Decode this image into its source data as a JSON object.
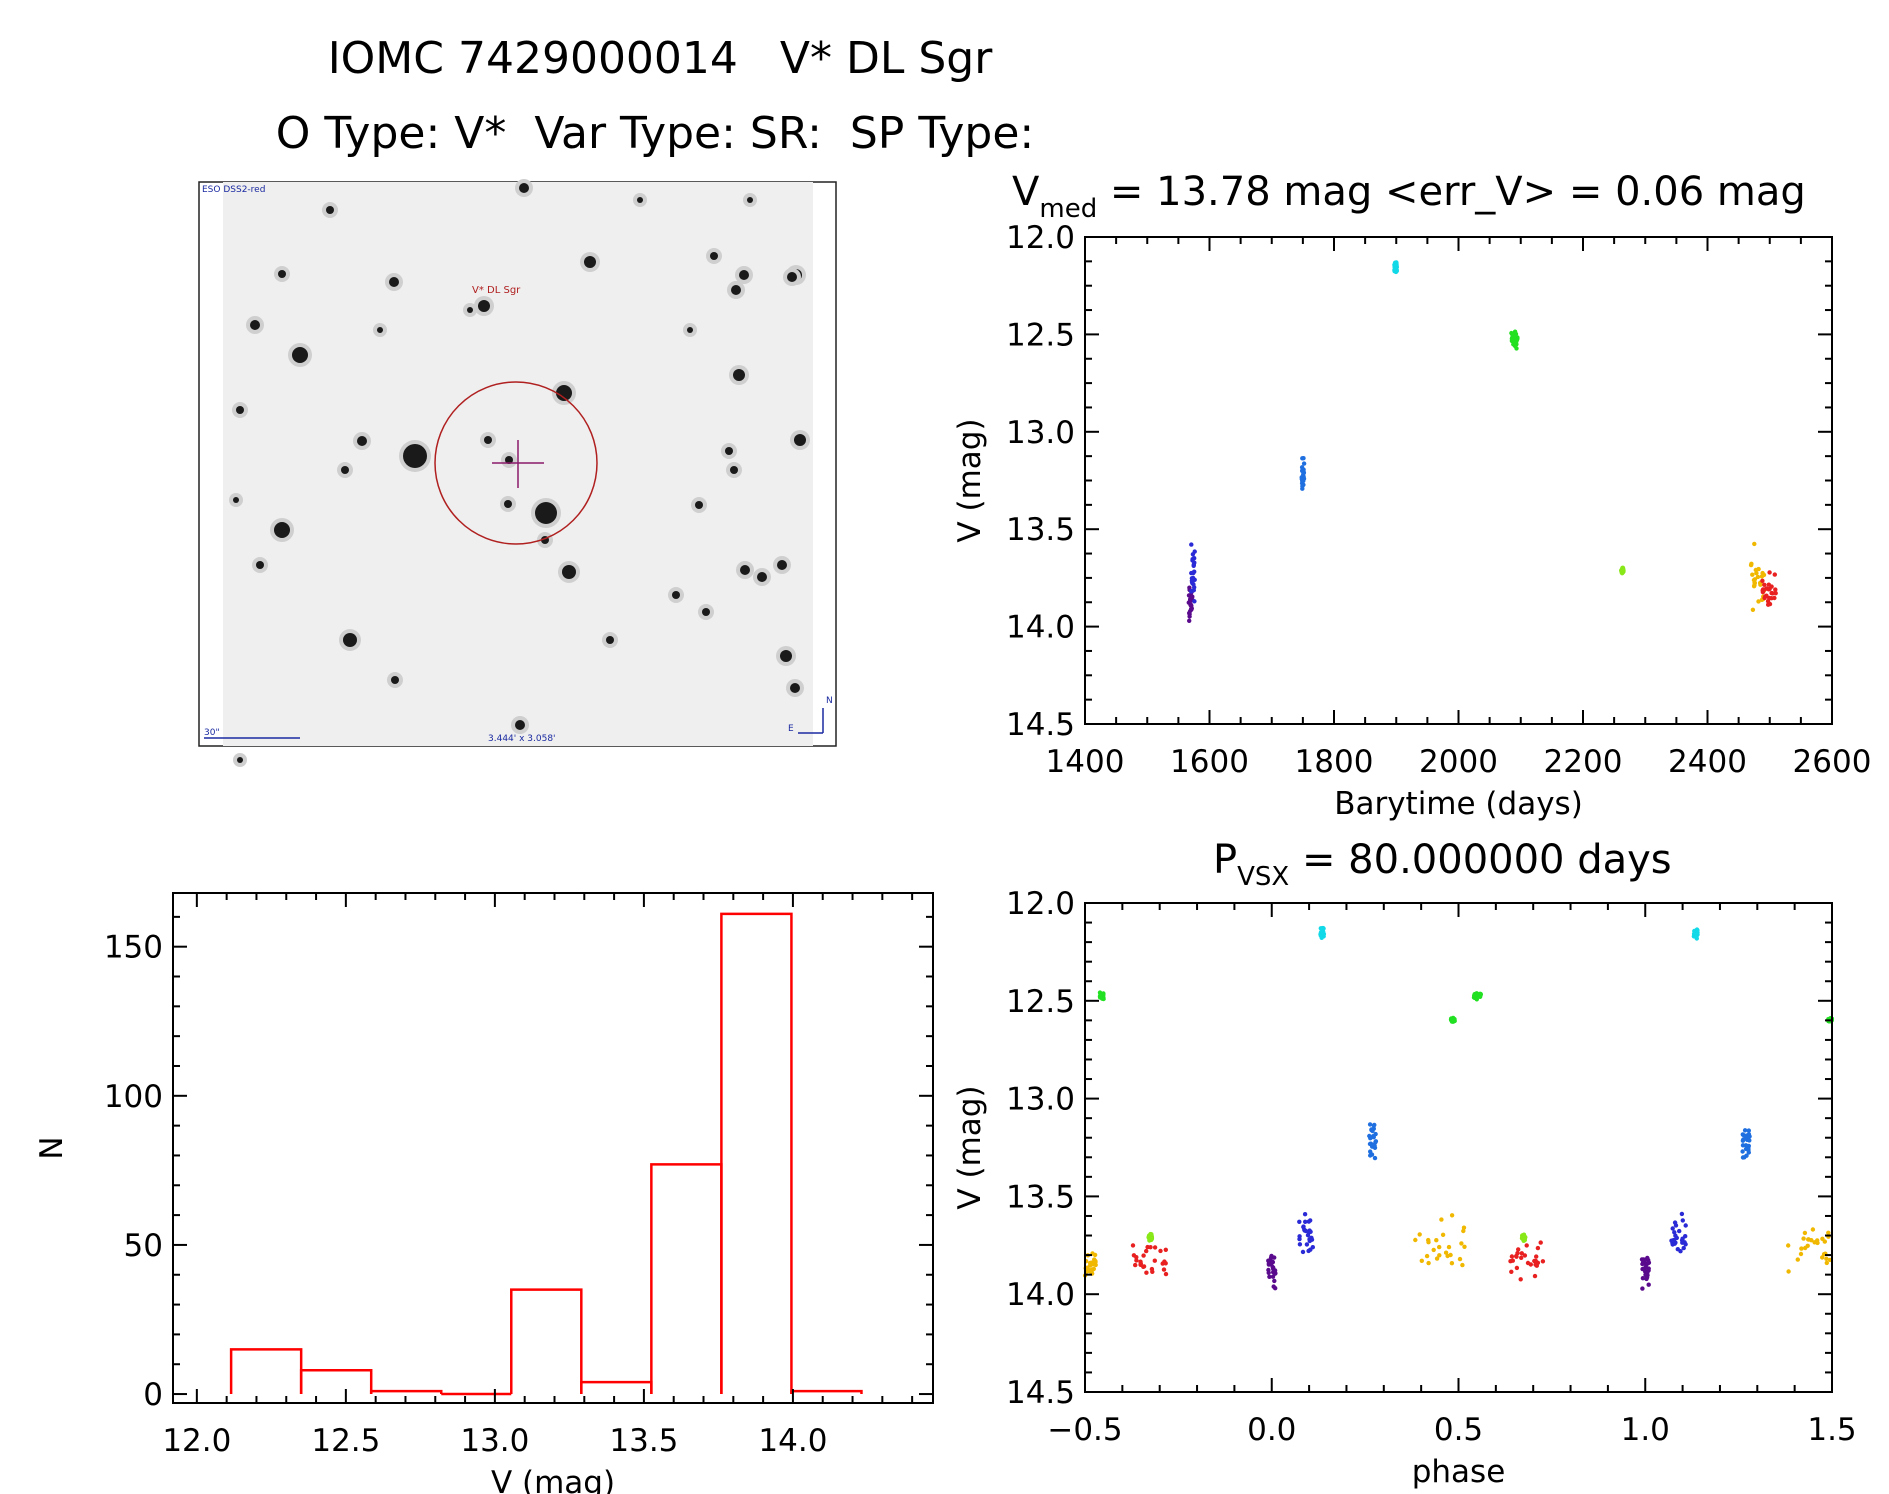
{
  "header": {
    "title": "IOMC 7429000014   V* DL Sgr",
    "subtitle": "O Type: V*  Var Type: SR:  SP Type:"
  },
  "finder": {
    "survey_label": "ESO DSS2-red",
    "target_label": "V* DL Sgr",
    "scale_label": "30\"",
    "fov_label": "3.444' x 3.058'",
    "north_label": "N",
    "east_label": "E"
  },
  "light_curve_title": {
    "main": "V",
    "sub": "med",
    "rest": " = 13.78 mag <err_V> = 0.06 mag"
  },
  "phase_title": {
    "main": "P",
    "sub": "VSX",
    "rest": " = 80.000000 days"
  },
  "chart_data": [
    {
      "id": "light-curve",
      "type": "scatter",
      "xlabel": "Barytime (days)",
      "ylabel": "V (mag)",
      "xlim": [
        1400,
        2600
      ],
      "ylim": [
        14.5,
        12.0
      ],
      "y_inverted": true,
      "xticks": [
        1400,
        1600,
        1800,
        2000,
        2200,
        2400,
        2600
      ],
      "yticks": [
        12.0,
        12.5,
        13.0,
        13.5,
        14.0,
        14.5
      ],
      "groups": [
        {
          "color": "#5a0a8c",
          "x": [
            1566,
            1573
          ],
          "y": [
            13.72,
            14.02
          ]
        },
        {
          "color": "#2a2ad6",
          "x": [
            1570,
            1578
          ],
          "y": [
            13.53,
            13.92
          ]
        },
        {
          "color": "#1f6fe0",
          "x": [
            1748,
            1752
          ],
          "y": [
            13.1,
            13.33
          ]
        },
        {
          "color": "#12d9e8",
          "x": [
            1897,
            1901
          ],
          "y": [
            12.12,
            12.19
          ]
        },
        {
          "color": "#22e022",
          "x": [
            2085,
            2095
          ],
          "y": [
            12.45,
            12.6
          ]
        },
        {
          "color": "#88e818",
          "x": [
            2261,
            2265
          ],
          "y": [
            13.69,
            13.73
          ]
        },
        {
          "color": "#f0b800",
          "x": [
            2470,
            2492
          ],
          "y": [
            13.53,
            13.99
          ]
        },
        {
          "color": "#e82020",
          "x": [
            2488,
            2510
          ],
          "y": [
            13.7,
            13.97
          ]
        }
      ]
    },
    {
      "id": "histogram",
      "type": "bar",
      "xlabel": "V (mag)",
      "ylabel": "N",
      "xlim": [
        11.92,
        14.47
      ],
      "ylim": [
        -3,
        168
      ],
      "xticks": [
        12.0,
        12.5,
        13.0,
        13.5,
        14.0
      ],
      "yticks": [
        0,
        50,
        100,
        150
      ],
      "bin_width": 0.235,
      "bin_starts": [
        12.115,
        12.35,
        12.585,
        12.82,
        13.055,
        13.29,
        13.525,
        13.76,
        13.995
      ],
      "values": [
        15,
        8,
        1,
        0,
        35,
        4,
        77,
        161,
        1
      ],
      "bar_color": "#ff0000"
    },
    {
      "id": "phase-curve",
      "type": "scatter",
      "xlabel": "phase",
      "ylabel": "V (mag)",
      "xlim": [
        -0.5,
        1.5
      ],
      "ylim": [
        14.5,
        12.0
      ],
      "y_inverted": true,
      "xticks": [
        -0.5,
        0.0,
        0.5,
        1.0,
        1.5
      ],
      "yticks": [
        12.0,
        12.5,
        13.0,
        13.5,
        14.0,
        14.5
      ],
      "groups": [
        {
          "color": "#22e022",
          "x": [
            -0.46,
            -0.45
          ],
          "y": [
            12.45,
            12.5
          ]
        },
        {
          "color": "#f0b800",
          "x": [
            -0.5,
            -0.47
          ],
          "y": [
            13.75,
            13.95
          ]
        },
        {
          "color": "#e82020",
          "x": [
            -0.38,
            -0.28
          ],
          "y": [
            13.7,
            13.96
          ]
        },
        {
          "color": "#88e818",
          "x": [
            -0.33,
            -0.32
          ],
          "y": [
            13.69,
            13.73
          ]
        },
        {
          "color": "#5a0a8c",
          "x": [
            -0.01,
            0.01
          ],
          "y": [
            13.74,
            14.02
          ]
        },
        {
          "color": "#2a2ad6",
          "x": [
            0.07,
            0.11
          ],
          "y": [
            13.53,
            13.84
          ]
        },
        {
          "color": "#12d9e8",
          "x": [
            0.13,
            0.14
          ],
          "y": [
            12.12,
            12.19
          ]
        },
        {
          "color": "#1f6fe0",
          "x": [
            0.26,
            0.28
          ],
          "y": [
            13.1,
            13.33
          ]
        },
        {
          "color": "#f0b800",
          "x": [
            0.38,
            0.52
          ],
          "y": [
            13.53,
            13.99
          ]
        },
        {
          "color": "#22e022",
          "x": [
            0.48,
            0.49
          ],
          "y": [
            12.58,
            12.61
          ]
        },
        {
          "color": "#22e022",
          "x": [
            0.54,
            0.56
          ],
          "y": [
            12.45,
            12.5
          ]
        },
        {
          "color": "#e82020",
          "x": [
            0.63,
            0.73
          ],
          "y": [
            13.7,
            13.96
          ]
        },
        {
          "color": "#88e818",
          "x": [
            0.67,
            0.68
          ],
          "y": [
            13.69,
            13.73
          ]
        },
        {
          "color": "#5a0a8c",
          "x": [
            0.99,
            1.01
          ],
          "y": [
            13.74,
            14.02
          ]
        },
        {
          "color": "#2a2ad6",
          "x": [
            1.07,
            1.11
          ],
          "y": [
            13.53,
            13.84
          ]
        },
        {
          "color": "#12d9e8",
          "x": [
            1.13,
            1.14
          ],
          "y": [
            12.12,
            12.19
          ]
        },
        {
          "color": "#1f6fe0",
          "x": [
            1.26,
            1.28
          ],
          "y": [
            13.1,
            13.33
          ]
        },
        {
          "color": "#f0b800",
          "x": [
            1.38,
            1.5
          ],
          "y": [
            13.53,
            13.99
          ]
        },
        {
          "color": "#22e022",
          "x": [
            1.49,
            1.5
          ],
          "y": [
            12.58,
            12.61
          ]
        }
      ]
    }
  ]
}
